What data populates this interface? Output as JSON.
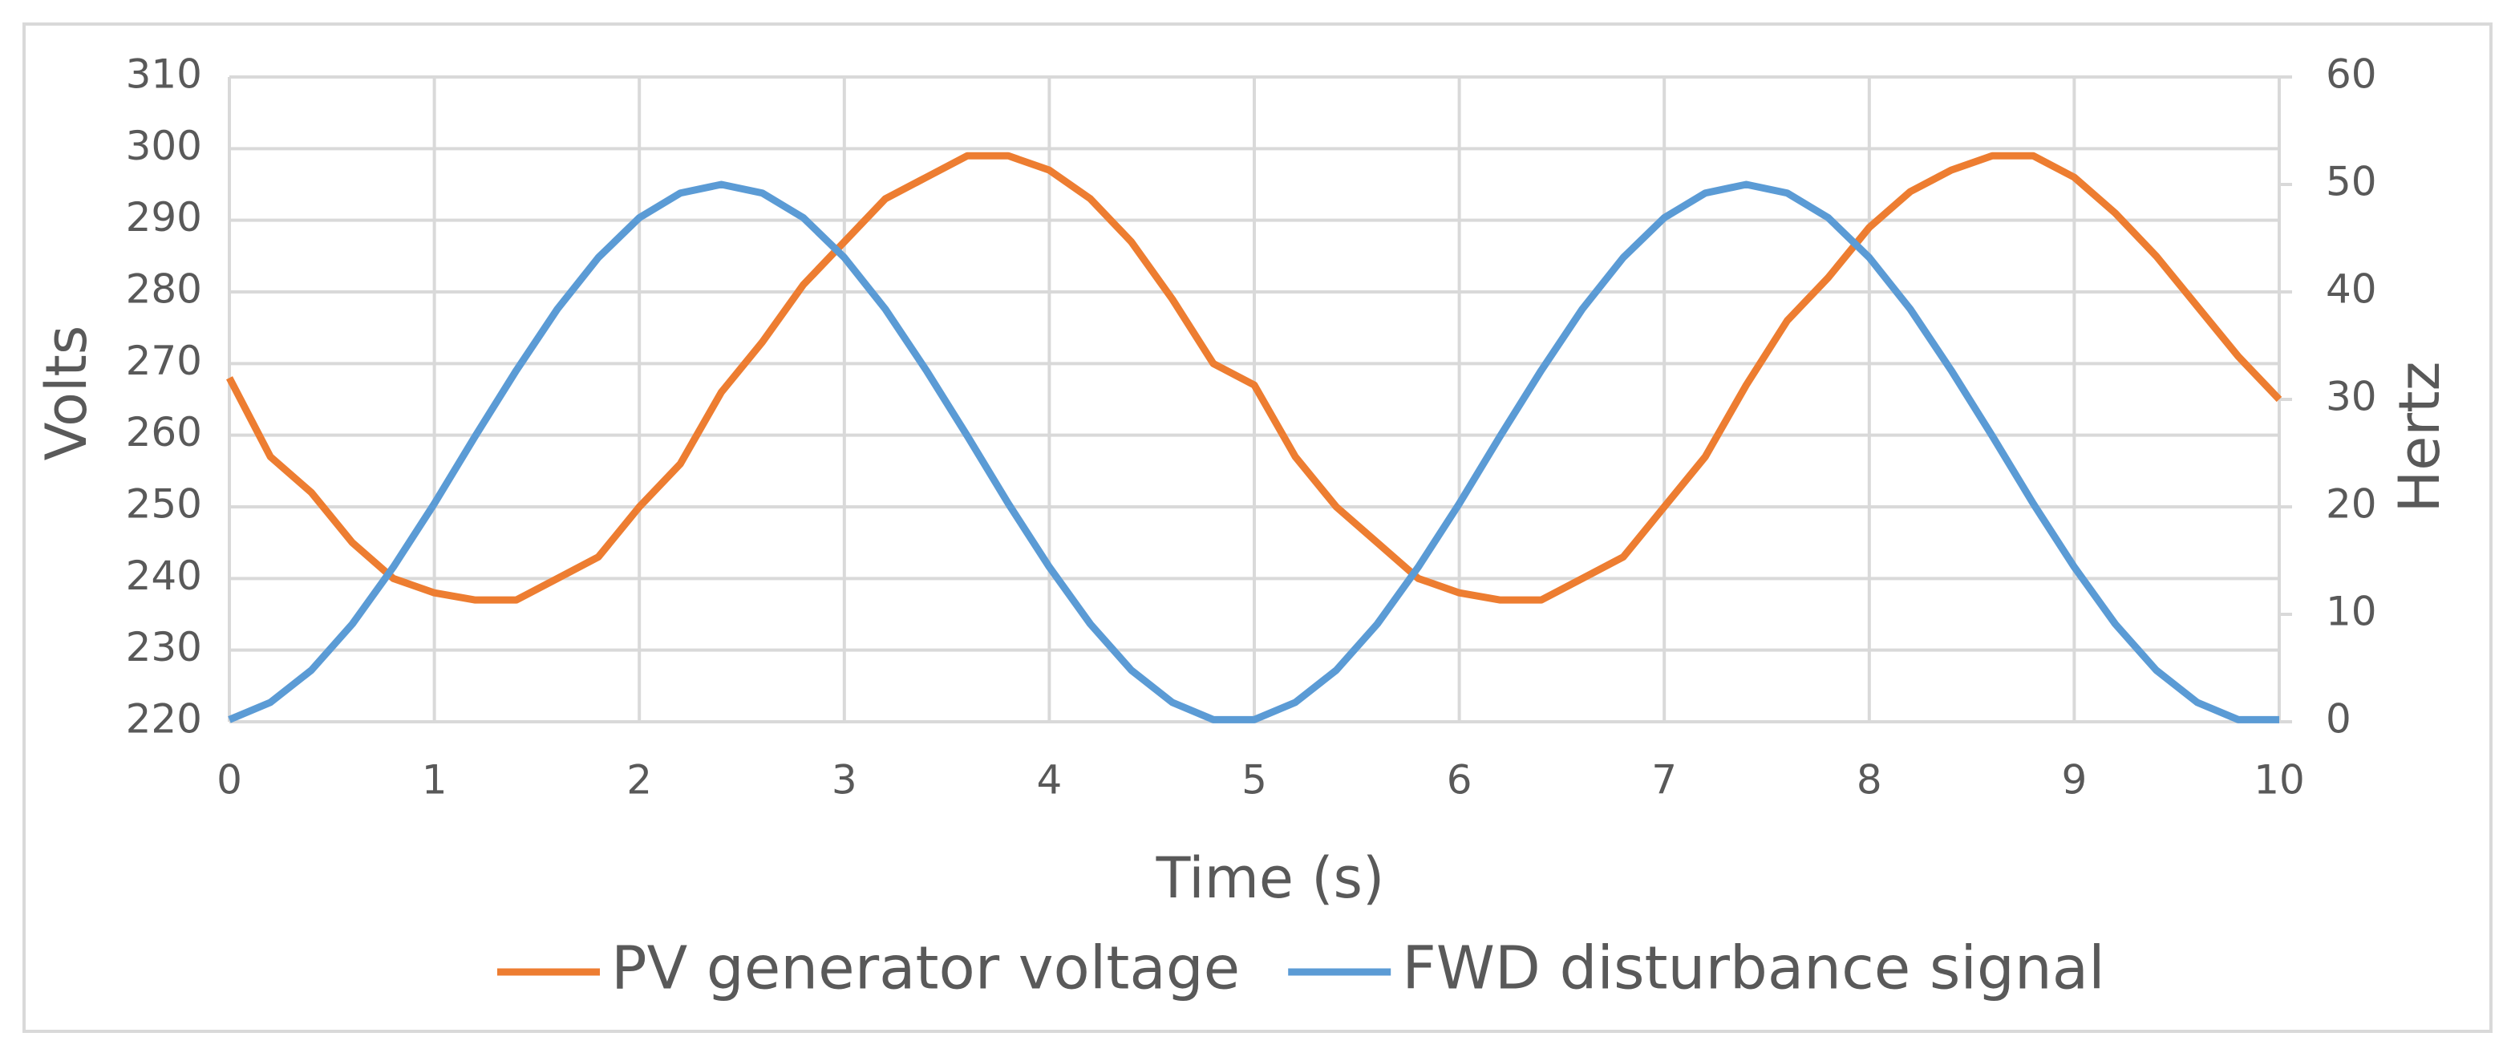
{
  "chart_data": {
    "type": "line",
    "x_label": "Time (s)",
    "y_label": "Volts",
    "y2_label": "Hertz",
    "x": [
      0,
      0.2,
      0.4,
      0.6,
      0.8,
      1,
      1.2,
      1.4,
      1.6,
      1.8,
      2,
      2.2,
      2.4,
      2.6,
      2.8,
      3,
      3.2,
      3.4,
      3.6,
      3.8,
      4,
      4.2,
      4.4,
      4.6,
      4.8,
      5,
      5.2,
      5.4,
      5.6,
      5.8,
      6,
      6.2,
      6.4,
      6.6,
      6.8,
      7,
      7.2,
      7.4,
      7.6,
      7.8,
      8,
      8.2,
      8.4,
      8.6,
      8.8,
      9,
      9.2,
      9.4,
      9.6,
      9.8,
      10
    ],
    "series": [
      {
        "name": "PV generator voltage",
        "color": "#ed7d31",
        "values": [
          268,
          257,
          252,
          245,
          240,
          238,
          237,
          237,
          240,
          243,
          250,
          256,
          266,
          273,
          281,
          287,
          293,
          296,
          299,
          299,
          297,
          293,
          287,
          279,
          270,
          267,
          257,
          250,
          245,
          240,
          238,
          237,
          237,
          240,
          243,
          250,
          257,
          267,
          276,
          282,
          289,
          294,
          297,
          299,
          299,
          296,
          291,
          285,
          278,
          271,
          265
        ]
      },
      {
        "name": "FWD disturbance signal",
        "color": "#5b9bd5",
        "axis": "y2",
        "values": [
          0.2,
          1.8,
          4.8,
          9.1,
          14.4,
          20.3,
          26.6,
          32.7,
          38.4,
          43.2,
          46.9,
          49.2,
          50,
          49.2,
          46.9,
          43.2,
          38.4,
          32.7,
          26.6,
          20.3,
          14.4,
          9.1,
          4.8,
          1.8,
          0.2,
          0.2,
          1.8,
          4.8,
          9.1,
          14.4,
          20.3,
          26.6,
          32.7,
          38.4,
          43.2,
          46.9,
          49.2,
          50,
          49.2,
          46.9,
          43.2,
          38.4,
          32.7,
          26.6,
          20.3,
          14.4,
          9.1,
          4.8,
          1.8,
          0.2,
          0.2
        ]
      }
    ],
    "xlim": [
      0,
      10
    ],
    "xticks": [
      0,
      1,
      2,
      3,
      4,
      5,
      6,
      7,
      8,
      9,
      10
    ],
    "ylim": [
      220,
      310
    ],
    "yticks": [
      220,
      230,
      240,
      250,
      260,
      270,
      280,
      290,
      300,
      310
    ],
    "y2lim": [
      0,
      60
    ],
    "y2ticks": [
      0,
      10,
      20,
      30,
      40,
      50,
      60
    ],
    "grid": true,
    "legend": "bottom"
  }
}
